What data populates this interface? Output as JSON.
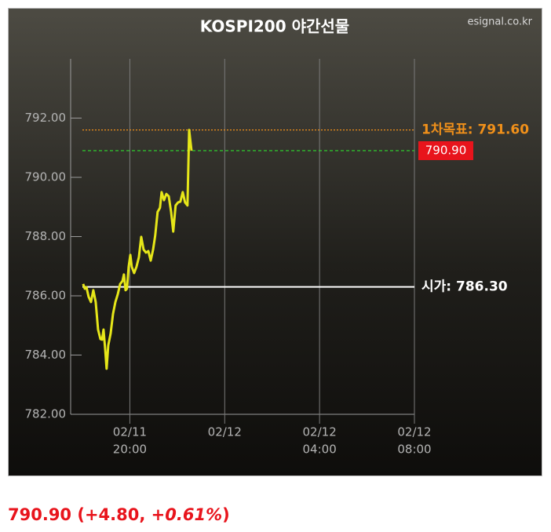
{
  "chart_data": {
    "type": "line",
    "title": "KOSPI200 야간선물",
    "source": "esignal.co.kr",
    "x": [
      18.03,
      18.1,
      18.17,
      18.26,
      18.36,
      18.46,
      18.56,
      18.66,
      18.76,
      18.83,
      18.89,
      18.96,
      19.02,
      19.09,
      19.19,
      19.29,
      19.39,
      19.49,
      19.59,
      19.69,
      19.75,
      19.82,
      19.88,
      19.95,
      20.02,
      20.08,
      20.18,
      20.28,
      20.38,
      20.48,
      20.58,
      20.68,
      20.78,
      20.88,
      20.98,
      21.07,
      21.17,
      21.27,
      21.34,
      21.44,
      21.54,
      21.64,
      21.74,
      21.83,
      21.93,
      22.03,
      22.13,
      22.23,
      22.33,
      22.43,
      22.5,
      22.6
    ],
    "series": [
      {
        "color": "#e6e619",
        "values": [
          786.4,
          786.24,
          786.29,
          785.97,
          785.79,
          786.19,
          785.79,
          784.86,
          784.54,
          784.52,
          784.86,
          784.2,
          783.54,
          784.33,
          784.73,
          785.39,
          785.79,
          786.05,
          786.4,
          786.5,
          786.72,
          786.19,
          786.24,
          786.98,
          787.38,
          786.98,
          786.77,
          786.98,
          787.3,
          787.99,
          787.56,
          787.46,
          787.51,
          787.19,
          787.56,
          788.04,
          788.83,
          788.97,
          789.5,
          789.23,
          789.44,
          789.36,
          788.83,
          788.17,
          789.05,
          789.15,
          789.18,
          789.5,
          789.15,
          789.05,
          791.6,
          790.9
        ]
      }
    ],
    "xlim": [
      18,
      32
    ],
    "xticks": [
      {
        "value": 20,
        "label": [
          "02/11",
          "20:00"
        ]
      },
      {
        "value": 24,
        "label": [
          "02/12"
        ]
      },
      {
        "value": 28,
        "label": [
          "02/12",
          "04:00"
        ]
      },
      {
        "value": 32,
        "label": [
          "02/12",
          "08:00"
        ]
      }
    ],
    "ylim": [
      782,
      794
    ],
    "yticks": [
      {
        "value": 782,
        "label": "782.00"
      },
      {
        "value": 784,
        "label": "784.00"
      },
      {
        "value": 786,
        "label": "786.00"
      },
      {
        "value": 788,
        "label": "788.00"
      },
      {
        "value": 790,
        "label": "790.00"
      },
      {
        "value": 792,
        "label": "792.00"
      }
    ],
    "reference_lines": [
      {
        "text": "1차목표: 791.60",
        "value": 791.6,
        "color": "#f0901a",
        "style": "dotted"
      },
      {
        "text": "790.90",
        "value": 790.9,
        "color": "#2ecc2e",
        "style": "dashed",
        "boxed": true
      },
      {
        "text": "시가: 786.30",
        "value": 786.3,
        "color": "#ffffff",
        "style": "solid"
      }
    ],
    "quote": [
      "790.90 (+4.80, ",
      "+0.61%",
      ")"
    ]
  }
}
